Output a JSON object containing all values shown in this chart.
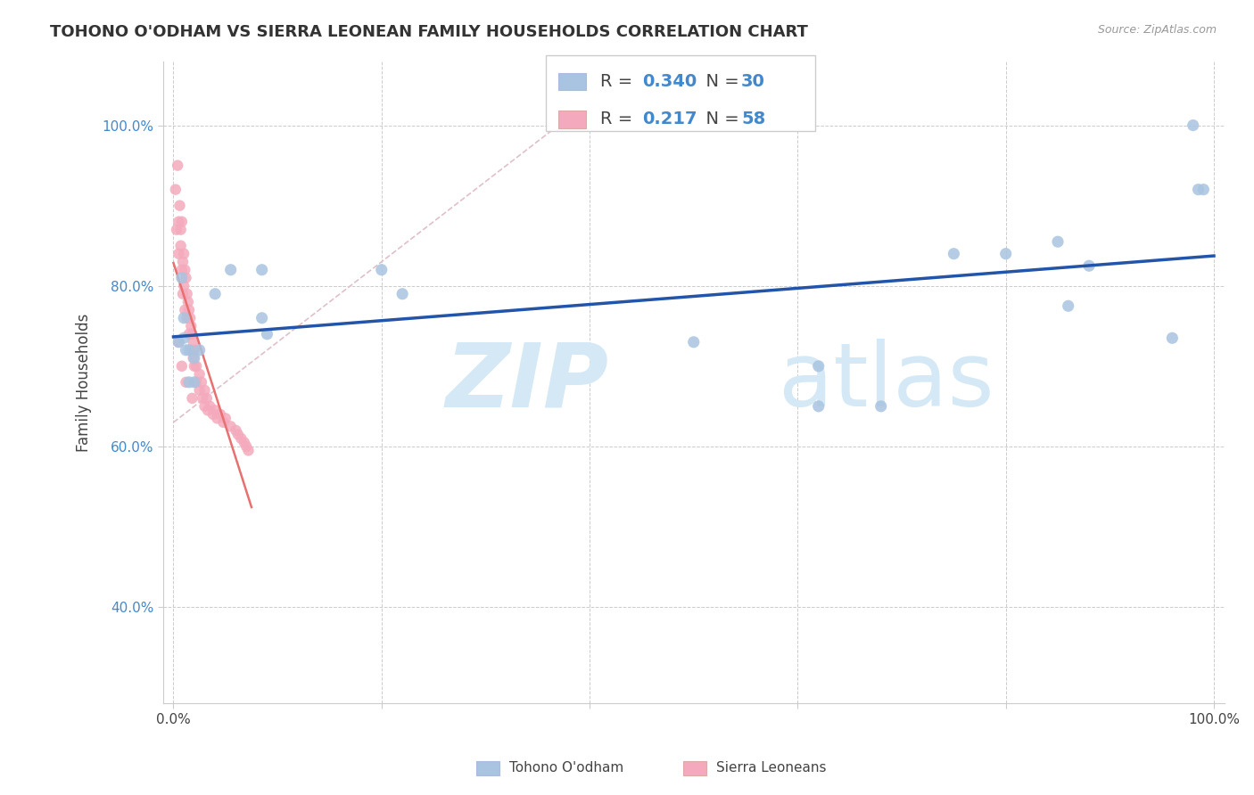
{
  "title": "TOHONO O'ODHAM VS SIERRA LEONEAN FAMILY HOUSEHOLDS CORRELATION CHART",
  "source": "Source: ZipAtlas.com",
  "ylabel": "Family Households",
  "xaxis_label_blue": "Tohono O'odham",
  "xaxis_label_pink": "Sierra Leoneans",
  "legend_blue_R": "0.340",
  "legend_blue_N": "30",
  "legend_pink_R": "0.217",
  "legend_pink_N": "58",
  "blue_color": "#A8C4E0",
  "pink_color": "#F4AABC",
  "trendline_blue_color": "#2255AA",
  "trendline_pink_color": "#E87070",
  "diagonal_color": "#E0C0C8",
  "blue_scatter_x": [
    0.005,
    0.008,
    0.01,
    0.01,
    0.012,
    0.015,
    0.015,
    0.02,
    0.02,
    0.025,
    0.04,
    0.055,
    0.085,
    0.085,
    0.09,
    0.22,
    0.2,
    0.5,
    0.62,
    0.62,
    0.68,
    0.75,
    0.8,
    0.85,
    0.86,
    0.88,
    0.96,
    0.98,
    0.985,
    0.99
  ],
  "blue_scatter_y": [
    0.73,
    0.81,
    0.735,
    0.76,
    0.72,
    0.68,
    0.72,
    0.71,
    0.68,
    0.72,
    0.79,
    0.82,
    0.82,
    0.76,
    0.74,
    0.79,
    0.82,
    0.73,
    0.65,
    0.7,
    0.65,
    0.84,
    0.84,
    0.855,
    0.775,
    0.825,
    0.735,
    1.0,
    0.92,
    0.92
  ],
  "pink_scatter_x": [
    0.002,
    0.003,
    0.004,
    0.005,
    0.005,
    0.006,
    0.007,
    0.007,
    0.008,
    0.008,
    0.009,
    0.009,
    0.01,
    0.01,
    0.011,
    0.011,
    0.012,
    0.013,
    0.013,
    0.014,
    0.015,
    0.015,
    0.016,
    0.017,
    0.018,
    0.018,
    0.019,
    0.019,
    0.02,
    0.02,
    0.022,
    0.022,
    0.025,
    0.025,
    0.027,
    0.028,
    0.03,
    0.03,
    0.032,
    0.033,
    0.035,
    0.038,
    0.04,
    0.042,
    0.045,
    0.048,
    0.05,
    0.055,
    0.06,
    0.062,
    0.065,
    0.068,
    0.07,
    0.072,
    0.005,
    0.008,
    0.012,
    0.018
  ],
  "pink_scatter_y": [
    0.92,
    0.87,
    0.95,
    0.88,
    0.84,
    0.9,
    0.87,
    0.85,
    0.88,
    0.82,
    0.83,
    0.79,
    0.84,
    0.8,
    0.82,
    0.77,
    0.81,
    0.79,
    0.76,
    0.78,
    0.77,
    0.74,
    0.76,
    0.75,
    0.74,
    0.72,
    0.73,
    0.71,
    0.72,
    0.7,
    0.7,
    0.68,
    0.69,
    0.67,
    0.68,
    0.66,
    0.67,
    0.65,
    0.66,
    0.645,
    0.65,
    0.64,
    0.645,
    0.635,
    0.64,
    0.63,
    0.635,
    0.625,
    0.62,
    0.615,
    0.61,
    0.605,
    0.6,
    0.595,
    0.73,
    0.7,
    0.68,
    0.66
  ],
  "watermark_zip_color": "#D0E4F4",
  "watermark_atlas_color": "#D0E4F4"
}
